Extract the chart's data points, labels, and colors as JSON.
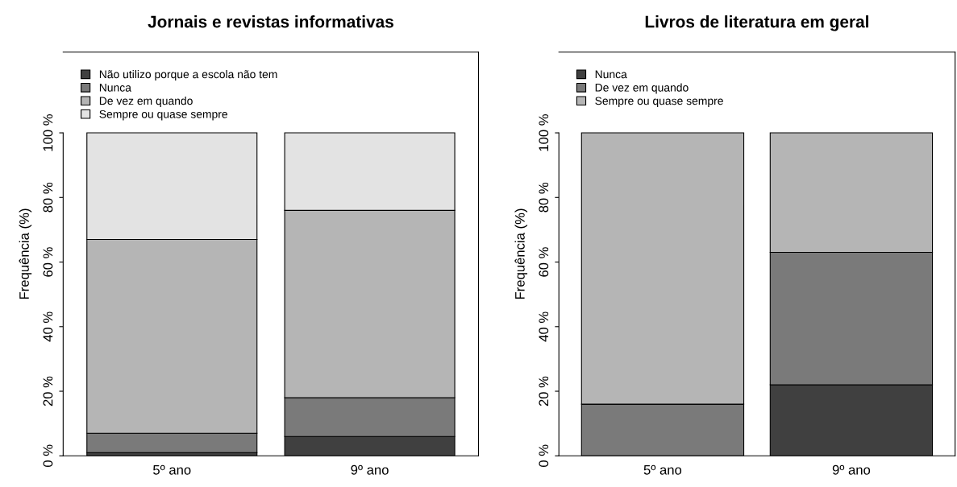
{
  "chart_data": [
    {
      "type": "bar",
      "stacked": true,
      "title": "Jornais e revistas informativas",
      "ylabel": "Frequência (%)",
      "categories": [
        "5º ano",
        "9º ano"
      ],
      "ylim": [
        0,
        125
      ],
      "yticks": [
        {
          "value": 0,
          "label": "0 %"
        },
        {
          "value": 20,
          "label": "20 %"
        },
        {
          "value": 40,
          "label": "40 %"
        },
        {
          "value": 60,
          "label": "60 %"
        },
        {
          "value": 80,
          "label": "80 %"
        },
        {
          "value": 100,
          "label": "100 %"
        }
      ],
      "legend": "top left",
      "grid": false,
      "series": [
        {
          "name": "Não utilizo porque a escola não tem",
          "color": "#404040",
          "values": [
            1,
            6
          ]
        },
        {
          "name": "Nunca",
          "color": "#7a7a7a",
          "values": [
            6,
            12
          ]
        },
        {
          "name": "De vez em quando",
          "color": "#b5b5b5",
          "values": [
            60,
            58
          ]
        },
        {
          "name": "Sempre ou quase sempre",
          "color": "#e3e3e3",
          "values": [
            33,
            24
          ]
        }
      ]
    },
    {
      "type": "bar",
      "stacked": true,
      "title": "Livros de literatura em geral",
      "ylabel": "Frequência (%)",
      "categories": [
        "5º ano",
        "9º ano"
      ],
      "ylim": [
        0,
        125
      ],
      "yticks": [
        {
          "value": 0,
          "label": "0 %"
        },
        {
          "value": 20,
          "label": "20 %"
        },
        {
          "value": 40,
          "label": "40 %"
        },
        {
          "value": 60,
          "label": "60 %"
        },
        {
          "value": 80,
          "label": "80 %"
        },
        {
          "value": 100,
          "label": "100 %"
        }
      ],
      "legend": "top left",
      "grid": false,
      "series": [
        {
          "name": "Nunca",
          "color": "#404040",
          "values": [
            0,
            22
          ]
        },
        {
          "name": "De vez em quando",
          "color": "#7a7a7a",
          "values": [
            16,
            41
          ]
        },
        {
          "name": "Sempre ou quase sempre",
          "color": "#b5b5b5",
          "values": [
            84,
            37
          ]
        }
      ]
    }
  ]
}
